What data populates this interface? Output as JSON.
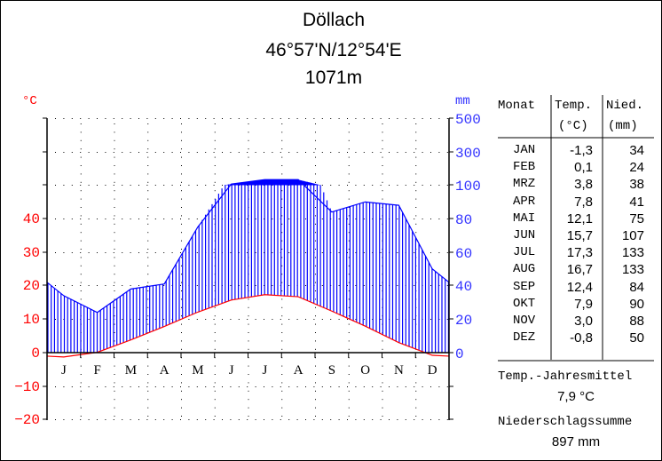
{
  "header": {
    "station": "Döllach",
    "coordinates": "46°57'N/12°54'E",
    "elevation": "1071m"
  },
  "axes": {
    "left_unit": "°C",
    "right_unit": "mm",
    "left_ticks": [
      "40",
      "30",
      "20",
      "10",
      "0",
      "−10",
      "−20"
    ],
    "right_ticks": [
      "500",
      "300",
      "100",
      "80",
      "60",
      "40",
      "20",
      "0"
    ],
    "month_letters": [
      "J",
      "F",
      "M",
      "A",
      "M",
      "J",
      "J",
      "A",
      "S",
      "O",
      "N",
      "D"
    ]
  },
  "colors": {
    "temperature": "#ff0000",
    "precipitation": "#0000ff",
    "left_axis_text": "#ff0000",
    "right_axis_text": "#3333ff"
  },
  "table": {
    "headers": {
      "month": "Monat",
      "temp_1": "Temp.",
      "temp_2": "(°C)",
      "prec_1": "Nied.",
      "prec_2": "(mm)"
    },
    "rows": [
      {
        "month": "JAN",
        "temp": "-1,3",
        "prec": "34"
      },
      {
        "month": "FEB",
        "temp": "0,1",
        "prec": "24"
      },
      {
        "month": "MRZ",
        "temp": "3,8",
        "prec": "38"
      },
      {
        "month": "APR",
        "temp": "7,8",
        "prec": "41"
      },
      {
        "month": "MAI",
        "temp": "12,1",
        "prec": "75"
      },
      {
        "month": "JUN",
        "temp": "15,7",
        "prec": "107"
      },
      {
        "month": "JUL",
        "temp": "17,3",
        "prec": "133"
      },
      {
        "month": "AUG",
        "temp": "16,7",
        "prec": "133"
      },
      {
        "month": "SEP",
        "temp": "12,4",
        "prec": "84"
      },
      {
        "month": "OKT",
        "temp": "7,9",
        "prec": "90"
      },
      {
        "month": "NOV",
        "temp": "3,0",
        "prec": "88"
      },
      {
        "month": "DEZ",
        "temp": "-0,8",
        "prec": "50"
      }
    ],
    "annual_temp_label": "Temp.-Jahresmittel",
    "annual_temp_value": "7,9 °C",
    "annual_prec_label": "Niederschlagssumme",
    "annual_prec_value": "897 mm"
  },
  "chart_data": {
    "type": "line",
    "title": "Döllach 46°57'N/12°54'E 1071m",
    "categories": [
      "JAN",
      "FEB",
      "MRZ",
      "APR",
      "MAI",
      "JUN",
      "JUL",
      "AUG",
      "SEP",
      "OKT",
      "NOV",
      "DEZ"
    ],
    "series": [
      {
        "name": "Temp. (°C)",
        "axis": "left",
        "color": "#ff0000",
        "values": [
          -1.3,
          0.1,
          3.8,
          7.8,
          12.1,
          15.7,
          17.3,
          16.7,
          12.4,
          7.9,
          3.0,
          -0.8
        ]
      },
      {
        "name": "Nied. (mm)",
        "axis": "right",
        "color": "#0000ff",
        "values": [
          34,
          24,
          38,
          41,
          75,
          107,
          133,
          133,
          84,
          90,
          88,
          50
        ]
      }
    ],
    "xlabel": "",
    "ylabel_left": "°C",
    "ylabel_right": "mm",
    "ylim_left": [
      -20,
      40
    ],
    "ylim_right": [
      0,
      500
    ],
    "right_axis_note": "0–100 mm at 20 mm steps, above 100 mm compressed (100, 300, 500)",
    "annual_mean_temp": 7.9,
    "annual_precip_sum": 897,
    "grid": "dotted"
  }
}
